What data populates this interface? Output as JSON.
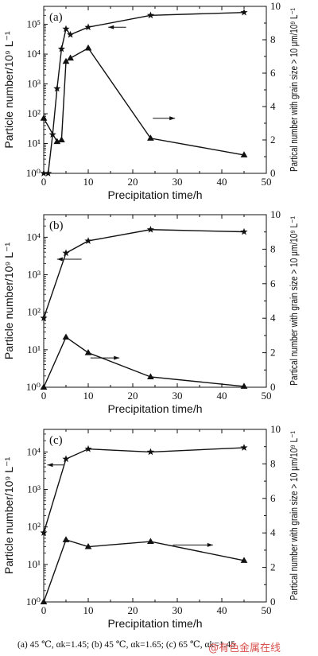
{
  "chart_data": [
    {
      "type": "line",
      "panel_label": "(a)",
      "xlabel": "Precipitation time/h",
      "ylabel_left": "Particle number/10⁹ L⁻¹",
      "ylabel_right": "Partical number with grain size > 10 μm/10⁹ L⁻¹",
      "xlim": [
        0,
        50
      ],
      "xticks": [
        "0",
        "10",
        "20",
        "30",
        "40",
        "50"
      ],
      "ylim_left": [
        1,
        400000
      ],
      "yscale_left": "log",
      "yticks_left": [
        "10⁰",
        "10¹",
        "10²",
        "10³",
        "10⁴",
        "10⁵"
      ],
      "ylim_right": [
        0,
        10
      ],
      "yticks_right": [
        "0",
        "2",
        "4",
        "6",
        "8",
        "10"
      ],
      "series": [
        {
          "marker": "star",
          "axis": "left",
          "x": [
            0,
            1,
            2,
            3,
            4,
            5,
            6,
            10,
            24,
            45
          ],
          "y": [
            1,
            1,
            20,
            700,
            15000,
            70000,
            45000,
            80000,
            200000,
            250000
          ]
        },
        {
          "marker": "triangle",
          "axis": "right",
          "x": [
            0,
            3,
            4,
            5,
            6,
            10,
            24,
            45
          ],
          "y": [
            3.3,
            1.9,
            2.0,
            6.7,
            6.9,
            7.5,
            2.1,
            1.1
          ]
        }
      ],
      "arrows": [
        {
          "direction": "left",
          "x_from": 18.5,
          "x_to": 14.5,
          "axis": "left",
          "y": 80000
        },
        {
          "direction": "right",
          "x_from": 24.5,
          "x_to": 29.5,
          "axis": "right",
          "y": 3.3
        }
      ]
    },
    {
      "type": "line",
      "panel_label": "(b)",
      "xlabel": "Precipitation time/h",
      "ylabel_left": "Particle number/10⁹ L⁻¹",
      "ylabel_right": "Partical number with grain size > 10 μm/10⁹ L⁻¹",
      "xlim": [
        0,
        50
      ],
      "xticks": [
        "0",
        "10",
        "20",
        "30",
        "40",
        "50"
      ],
      "ylim_left": [
        1,
        40000
      ],
      "yscale_left": "log",
      "yticks_left": [
        "10⁰",
        "10¹",
        "10²",
        "10³",
        "10⁴"
      ],
      "ylim_right": [
        0,
        10
      ],
      "yticks_right": [
        "0",
        "2",
        "4",
        "6",
        "8",
        "10"
      ],
      "series": [
        {
          "marker": "star",
          "axis": "left",
          "x": [
            0,
            5,
            10,
            24,
            45
          ],
          "y": [
            70,
            3800,
            8000,
            16000,
            14000
          ]
        },
        {
          "marker": "triangle",
          "axis": "right",
          "x": [
            0,
            5,
            10,
            24,
            45
          ],
          "y": [
            0,
            2.9,
            2.0,
            0.6,
            0.05
          ]
        }
      ],
      "arrows": [
        {
          "direction": "left",
          "x_from": 8.5,
          "x_to": 3.0,
          "axis": "left",
          "y": 2600
        },
        {
          "direction": "right",
          "x_from": 10.5,
          "x_to": 17.0,
          "axis": "right",
          "y": 1.7
        }
      ]
    },
    {
      "type": "line",
      "panel_label": "(c)",
      "xlabel": "Precipitation time/h",
      "ylabel_left": "Particle number/10⁹ L⁻¹",
      "ylabel_right": "Partical number with grain size > 10 μm/10⁹ L⁻¹",
      "xlim": [
        0,
        50
      ],
      "xticks": [
        "0",
        "10",
        "20",
        "30",
        "40",
        "50"
      ],
      "ylim_left": [
        1,
        40000
      ],
      "yscale_left": "log",
      "yticks_left": [
        "10⁰",
        "10¹",
        "10²",
        "10³",
        "10⁴"
      ],
      "ylim_right": [
        0,
        10
      ],
      "yticks_right": [
        "0",
        "2",
        "4",
        "6",
        "8",
        "10"
      ],
      "series": [
        {
          "marker": "star",
          "axis": "left",
          "x": [
            0,
            5,
            10,
            24,
            45
          ],
          "y": [
            70,
            6500,
            12000,
            10000,
            13000
          ]
        },
        {
          "marker": "triangle",
          "axis": "right",
          "x": [
            0,
            5,
            10,
            24,
            45
          ],
          "y": [
            0,
            3.6,
            3.2,
            3.5,
            2.4
          ]
        }
      ],
      "arrows": [
        {
          "direction": "left",
          "x_from": 4.5,
          "x_to": 0.8,
          "axis": "left",
          "y": 4500
        },
        {
          "direction": "right",
          "x_from": 29.0,
          "x_to": 38.0,
          "axis": "right",
          "y": 3.3
        }
      ]
    }
  ],
  "caption": "(a) 45 ℃, αk=1.45; (b) 45 ℃, αk=1.65; (c) 65 ℃, αk=1.45",
  "watermark": "@有色金属在线",
  "colors": {
    "line": "#111111",
    "axis": "#111111",
    "watermark": "#d9534f"
  }
}
